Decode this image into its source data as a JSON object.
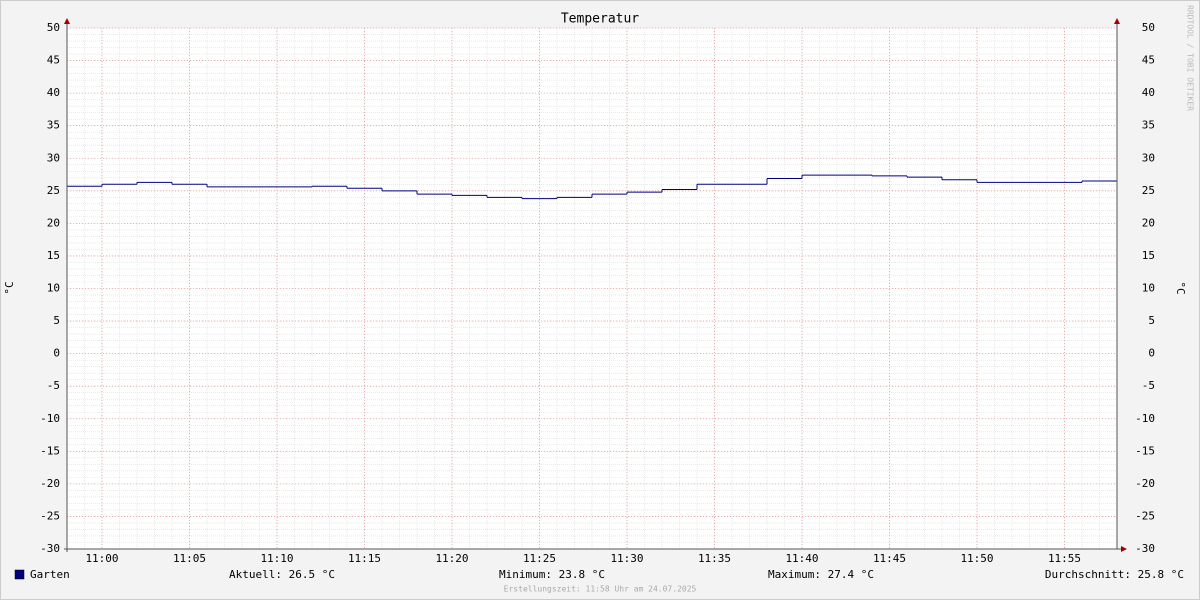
{
  "chart_data": {
    "type": "line",
    "step": true,
    "title": "Temperatur",
    "ylabel": "°C",
    "y2label": "°C",
    "x": [
      "10:58",
      "11:00",
      "11:02",
      "11:04",
      "11:06",
      "11:08",
      "11:10",
      "11:12",
      "11:14",
      "11:16",
      "11:18",
      "11:20",
      "11:22",
      "11:24",
      "11:26",
      "11:28",
      "11:30",
      "11:32",
      "11:34",
      "11:36",
      "11:38",
      "11:40",
      "11:42",
      "11:44",
      "11:46",
      "11:48",
      "11:50",
      "11:52",
      "11:54",
      "11:56"
    ],
    "series": [
      {
        "name": "Garten",
        "color": "#000080",
        "values": [
          25.7,
          26.0,
          26.3,
          26.0,
          25.6,
          25.6,
          25.6,
          25.7,
          25.4,
          25.0,
          24.5,
          24.3,
          24.0,
          23.8,
          24.0,
          24.5,
          24.8,
          25.2,
          26.0,
          26.0,
          26.9,
          27.4,
          27.4,
          27.3,
          27.1,
          26.7,
          26.3,
          26.3,
          26.3,
          26.5
        ]
      }
    ],
    "xlim": [
      "10:58",
      "11:58"
    ],
    "xticks": [
      "11:00",
      "11:05",
      "11:10",
      "11:15",
      "11:20",
      "11:25",
      "11:30",
      "11:35",
      "11:40",
      "11:45",
      "11:50",
      "11:55"
    ],
    "ylim": [
      -30,
      50
    ],
    "yticks": [
      -30,
      -25,
      -20,
      -15,
      -10,
      -5,
      0,
      5,
      10,
      15,
      20,
      25,
      30,
      35,
      40,
      45,
      50
    ],
    "grid": true,
    "legend_stats": [
      "Aktuell: 26.5 °C",
      "Minimum: 23.8 °C",
      "Maximum: 27.4 °C",
      "Durchschnitt: 25.8 °C"
    ],
    "footer": "Erstellungszeit: 11:58 Uhr am 24.07.2025",
    "watermark": "RRDTOOL / TOBI OETIKER"
  }
}
